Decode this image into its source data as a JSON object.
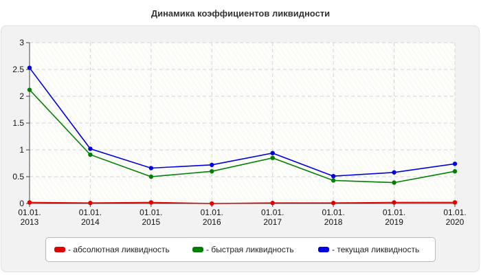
{
  "chart_data": {
    "type": "line",
    "title": "Динамика коэффициентов ликвидности",
    "x_tick_labels": [
      [
        "01.01.",
        "2013"
      ],
      [
        "01.01.",
        "2014"
      ],
      [
        "01.01.",
        "2015"
      ],
      [
        "01.01.",
        "2016"
      ],
      [
        "01.01.",
        "2017"
      ],
      [
        "01.01.",
        "2018"
      ],
      [
        "01.01.",
        "2019"
      ],
      [
        "01.01.",
        "2020"
      ]
    ],
    "categories": [
      "01.01.2013",
      "01.01.2014",
      "01.01.2015",
      "01.01.2016",
      "01.01.2017",
      "01.01.2018",
      "01.01.2019",
      "01.01.2020"
    ],
    "y_ticks": [
      "0",
      "0.5",
      "1",
      "1.5",
      "2",
      "2.5",
      "3"
    ],
    "ylim": [
      0,
      3
    ],
    "grid": true,
    "legend_position": "bottom",
    "series": [
      {
        "name": "- абсолютная ликвидность",
        "color": "#e00000",
        "values": [
          0.02,
          0.01,
          0.02,
          0.0,
          0.01,
          0.01,
          0.02,
          0.02
        ]
      },
      {
        "name": "- быстрая ликвидность",
        "color": "#008000",
        "values": [
          2.12,
          0.91,
          0.5,
          0.6,
          0.85,
          0.43,
          0.39,
          0.6
        ]
      },
      {
        "name": "- текущая ликвидность",
        "color": "#0000e0",
        "values": [
          2.53,
          1.02,
          0.66,
          0.72,
          0.94,
          0.51,
          0.58,
          0.74
        ]
      }
    ]
  }
}
